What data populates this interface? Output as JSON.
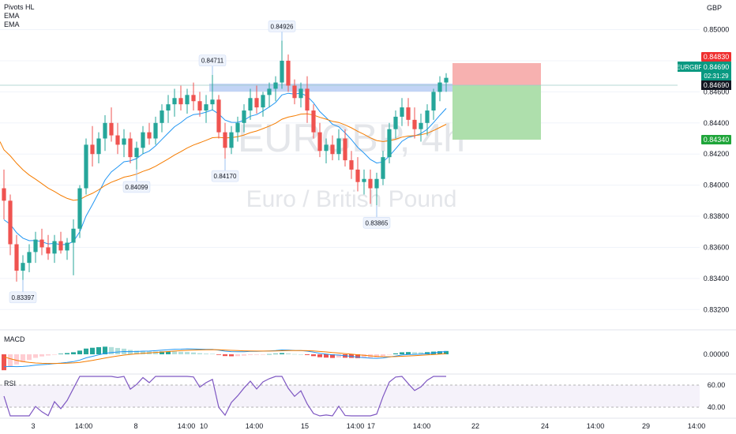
{
  "indicators": [
    "Pivots HL",
    "EMA",
    "EMA"
  ],
  "currency": "GBP",
  "watermark": {
    "symbol": "EURGBP, 4h",
    "name": "Euro / British Pound"
  },
  "symbol_tag": {
    "symbol": "EURGBP",
    "price": "0.84690",
    "countdown": "02:31:29"
  },
  "price_labels": {
    "target": "0.84830",
    "entry": "0.84690",
    "stop": "0.84340"
  },
  "colors": {
    "up": "#26a69a",
    "down": "#ef5350",
    "ema_fast": "#2196f3",
    "ema_slow": "#f57c00",
    "rsi": "#7e57c2",
    "target_zone": "#f7a9a8",
    "stop_zone": "#a5d6a7"
  },
  "panes": {
    "macd_label": "MACD",
    "rsi_label": "RSI"
  },
  "chart_data": {
    "type": "candlestick",
    "y_ticks": [
      "0.85000",
      "0.84800",
      "0.84600",
      "0.84400",
      "0.84200",
      "0.84000",
      "0.83800",
      "0.83600",
      "0.83400",
      "0.83200"
    ],
    "ylim": [
      0.831,
      0.8515
    ],
    "x_ticks": [
      "3",
      "14:00",
      "8",
      "14:00",
      "10",
      "14:00",
      "15",
      "14:00",
      "17",
      "14:00",
      "22",
      "24",
      "14:00",
      "29",
      "14:00"
    ],
    "macd_ticks": [
      "0.00000"
    ],
    "rsi_ticks": [
      "60.00",
      "40.00"
    ],
    "pivots": [
      {
        "label": "0.83397",
        "type": "low",
        "bar": 3
      },
      {
        "label": "0.84099",
        "type": "low",
        "bar": 21
      },
      {
        "label": "0.84711",
        "type": "high",
        "bar": 33
      },
      {
        "label": "0.84170",
        "type": "low",
        "bar": 35
      },
      {
        "label": "0.84926",
        "type": "high",
        "bar": 44
      },
      {
        "label": "0.83865",
        "type": "low",
        "bar": 59
      }
    ],
    "candles": [
      [
        0.8398,
        0.841,
        0.8378,
        0.839
      ],
      [
        0.839,
        0.8394,
        0.8355,
        0.8362
      ],
      [
        0.8362,
        0.8368,
        0.8338,
        0.8345
      ],
      [
        0.8345,
        0.8355,
        0.8339,
        0.835
      ],
      [
        0.835,
        0.8362,
        0.8344,
        0.8357
      ],
      [
        0.8357,
        0.837,
        0.835,
        0.8365
      ],
      [
        0.8365,
        0.8372,
        0.8355,
        0.836
      ],
      [
        0.836,
        0.8368,
        0.8352,
        0.8356
      ],
      [
        0.8356,
        0.8368,
        0.835,
        0.8364
      ],
      [
        0.8364,
        0.837,
        0.8356,
        0.8358
      ],
      [
        0.8358,
        0.8366,
        0.8352,
        0.8363
      ],
      [
        0.8363,
        0.8378,
        0.8342,
        0.8372
      ],
      [
        0.8372,
        0.84,
        0.8366,
        0.8398
      ],
      [
        0.8398,
        0.843,
        0.8394,
        0.8426
      ],
      [
        0.8426,
        0.8438,
        0.8412,
        0.842
      ],
      [
        0.842,
        0.8434,
        0.8414,
        0.843
      ],
      [
        0.843,
        0.8445,
        0.8422,
        0.844
      ],
      [
        0.844,
        0.845,
        0.8428,
        0.8432
      ],
      [
        0.8432,
        0.844,
        0.842,
        0.8426
      ],
      [
        0.8426,
        0.8436,
        0.8418,
        0.843
      ],
      [
        0.843,
        0.8434,
        0.8414,
        0.8418
      ],
      [
        0.8418,
        0.8428,
        0.841,
        0.8424
      ],
      [
        0.8424,
        0.8438,
        0.842,
        0.8434
      ],
      [
        0.8434,
        0.844,
        0.8426,
        0.843
      ],
      [
        0.843,
        0.8444,
        0.8426,
        0.844
      ],
      [
        0.844,
        0.8452,
        0.8434,
        0.8448
      ],
      [
        0.8448,
        0.8458,
        0.844,
        0.8452
      ],
      [
        0.8452,
        0.8462,
        0.8444,
        0.8456
      ],
      [
        0.8456,
        0.8464,
        0.8448,
        0.8452
      ],
      [
        0.8452,
        0.8462,
        0.8446,
        0.8458
      ],
      [
        0.8458,
        0.8466,
        0.8448,
        0.8454
      ],
      [
        0.8454,
        0.846,
        0.8444,
        0.8448
      ],
      [
        0.8448,
        0.8458,
        0.844,
        0.8452
      ],
      [
        0.8452,
        0.8471,
        0.8448,
        0.8455
      ],
      [
        0.8455,
        0.8458,
        0.843,
        0.8434
      ],
      [
        0.8434,
        0.844,
        0.8417,
        0.8424
      ],
      [
        0.8424,
        0.8438,
        0.842,
        0.8434
      ],
      [
        0.8434,
        0.8444,
        0.8428,
        0.844
      ],
      [
        0.844,
        0.8452,
        0.8434,
        0.8448
      ],
      [
        0.8448,
        0.8462,
        0.8442,
        0.8456
      ],
      [
        0.8456,
        0.8464,
        0.8446,
        0.845
      ],
      [
        0.845,
        0.846,
        0.8444,
        0.8458
      ],
      [
        0.8458,
        0.8466,
        0.845,
        0.8462
      ],
      [
        0.8462,
        0.847,
        0.8454,
        0.8466
      ],
      [
        0.8466,
        0.8493,
        0.8462,
        0.848
      ],
      [
        0.848,
        0.8484,
        0.846,
        0.8464
      ],
      [
        0.8464,
        0.8468,
        0.8452,
        0.8456
      ],
      [
        0.8456,
        0.8466,
        0.845,
        0.8462
      ],
      [
        0.8462,
        0.847,
        0.844,
        0.8448
      ],
      [
        0.8448,
        0.8452,
        0.843,
        0.8434
      ],
      [
        0.8434,
        0.844,
        0.8418,
        0.8422
      ],
      [
        0.8422,
        0.843,
        0.8414,
        0.8426
      ],
      [
        0.8426,
        0.8432,
        0.8416,
        0.842
      ],
      [
        0.842,
        0.8436,
        0.8416,
        0.843
      ],
      [
        0.843,
        0.8436,
        0.8412,
        0.8416
      ],
      [
        0.8416,
        0.8422,
        0.8404,
        0.841
      ],
      [
        0.841,
        0.8418,
        0.8396,
        0.8402
      ],
      [
        0.8402,
        0.841,
        0.8394,
        0.8404
      ],
      [
        0.8404,
        0.841,
        0.8388,
        0.8398
      ],
      [
        0.8398,
        0.8408,
        0.8387,
        0.8404
      ],
      [
        0.8404,
        0.8422,
        0.84,
        0.8418
      ],
      [
        0.8418,
        0.844,
        0.8414,
        0.8436
      ],
      [
        0.8436,
        0.8448,
        0.843,
        0.8444
      ],
      [
        0.8444,
        0.8456,
        0.8438,
        0.845
      ],
      [
        0.845,
        0.8456,
        0.8438,
        0.8442
      ],
      [
        0.8442,
        0.845,
        0.843,
        0.8436
      ],
      [
        0.8436,
        0.8446,
        0.8428,
        0.844
      ],
      [
        0.844,
        0.8452,
        0.8432,
        0.8448
      ],
      [
        0.8448,
        0.8462,
        0.8442,
        0.846
      ],
      [
        0.846,
        0.847,
        0.8454,
        0.8466
      ],
      [
        0.8466,
        0.8472,
        0.846,
        0.8469
      ]
    ]
  }
}
